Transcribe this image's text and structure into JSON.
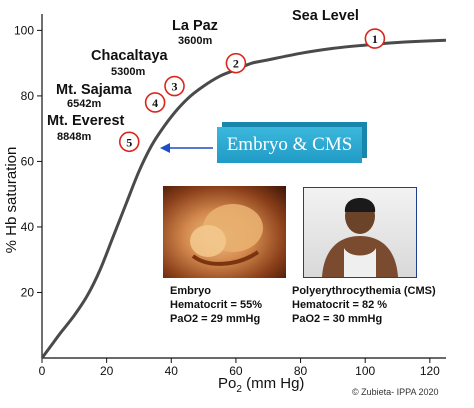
{
  "chart_data": {
    "type": "line",
    "xlabel": "PO2 (mm Hg)",
    "xlabel_main": "Po",
    "xlabel_sub": "2",
    "xlabel_tail": " (mm Hg)",
    "ylabel": "% Hb saturation",
    "xlim": [
      0,
      125
    ],
    "ylim": [
      0,
      105
    ],
    "x_ticks": [
      0,
      20,
      40,
      60,
      80,
      100,
      120
    ],
    "y_ticks": [
      20,
      40,
      60,
      80,
      100
    ],
    "grid": false,
    "series": [
      {
        "color": "#4a4a4a",
        "x": [
          0,
          3,
          6,
          10,
          14,
          18,
          22,
          26,
          30,
          34,
          38,
          42,
          46,
          50,
          55,
          60,
          65,
          70,
          80,
          90,
          100,
          110,
          120,
          125
        ],
        "values": [
          0,
          4,
          8,
          13,
          19,
          27,
          37,
          47,
          57,
          65,
          71,
          76,
          80,
          83,
          86,
          88,
          90,
          91,
          93,
          94.5,
          95.5,
          96.3,
          96.8,
          97
        ]
      }
    ],
    "points": [
      {
        "label": "1",
        "x": 103,
        "y": 97.5,
        "name": "Sea Level"
      },
      {
        "label": "2",
        "x": 60,
        "y": 90,
        "name": "La Paz",
        "altitude": "3600m"
      },
      {
        "label": "3",
        "x": 41,
        "y": 83,
        "name": "Chacaltaya",
        "altitude": "5300m"
      },
      {
        "label": "4",
        "x": 35,
        "y": 78,
        "name": "Mt. Sajama",
        "altitude": "6542m"
      },
      {
        "label": "5",
        "x": 27,
        "y": 66,
        "name": "Mt. Everest",
        "altitude": "8848m"
      }
    ],
    "callout_text": "Embryo & CMS",
    "accent_color": "#d9261c",
    "arrow_color": "#1f4ec4"
  },
  "captions": {
    "embryo": {
      "title": "Embryo",
      "hematocrit": "Hematocrit = 55%",
      "pao2": "PaO2 = 29 mmHg"
    },
    "cms": {
      "title": "Polyerythrocythemia (CMS)",
      "hematocrit": "Hematocrit = 82 %",
      "pao2": "PaO2 = 30 mmHg"
    }
  },
  "copyright": "© Zubieta- IPPA 2020"
}
